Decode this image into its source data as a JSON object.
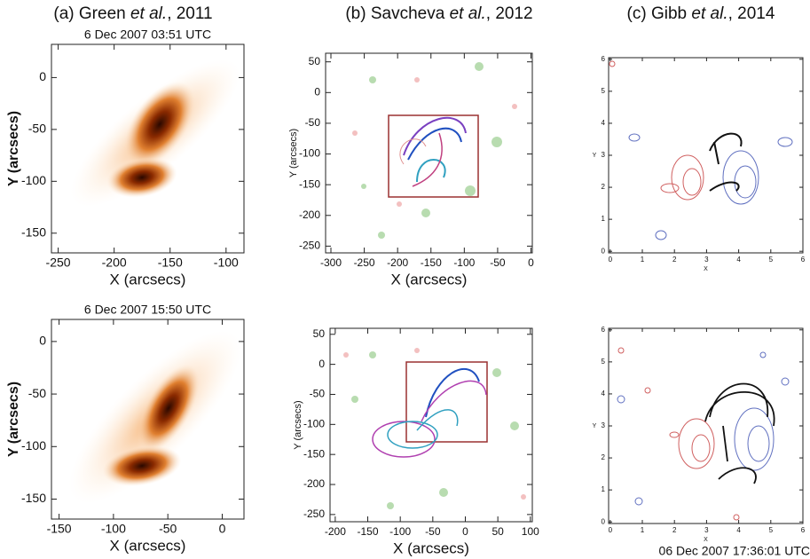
{
  "columns": [
    {
      "prefix": "(a) Green ",
      "italic": "et al.",
      "suffix": ", 2011"
    },
    {
      "prefix": "(b) Savcheva ",
      "italic": "et al.",
      "suffix": ", 2012"
    },
    {
      "prefix": "(c) Gibb ",
      "italic": "et al.",
      "suffix": ", 2014"
    }
  ],
  "panels": [
    {
      "caption": "6 Dec 2007 03:51 UTC",
      "xlabel": "X (arcsecs)",
      "ylabel": "Y (arcsecs)",
      "xlim": [
        -256,
        -84
      ],
      "ylim": [
        -169,
        32
      ],
      "xticks": [
        -250,
        -200,
        -150,
        -100
      ],
      "yticks": [
        -150,
        -100,
        -50,
        0
      ]
    },
    {
      "xlabel": "X (arcsecs)",
      "ylabel": "Y (arcsecs)",
      "xlim": [
        -308,
        2
      ],
      "ylim": [
        -261,
        64
      ],
      "xticks": [
        -300,
        -250,
        -200,
        -150,
        -100,
        -50,
        0
      ],
      "yticks": [
        -250,
        -200,
        -150,
        -100,
        -50,
        0,
        50
      ]
    },
    {
      "xlabel": "X",
      "ylabel": "Y",
      "xlim": [
        -0.05,
        6
      ],
      "ylim": [
        -0.05,
        6.05
      ],
      "xticks": [
        0,
        1,
        2,
        3,
        4,
        5,
        6
      ],
      "yticks": [
        0,
        1,
        2,
        3,
        4,
        5,
        6
      ]
    },
    {
      "caption": "6 Dec 2007 15:50 UTC",
      "xlabel": "X (arcsecs)",
      "ylabel": "Y (arcsecs)",
      "xlim": [
        -157,
        20
      ],
      "ylim": [
        -169,
        21
      ],
      "xticks": [
        -150,
        -100,
        -50,
        0
      ],
      "yticks": [
        -150,
        -100,
        -50,
        0
      ]
    },
    {
      "xlabel": "X (arcsecs)",
      "ylabel": "Y (arcsecs)",
      "xlim": [
        -208,
        103
      ],
      "ylim": [
        -262,
        60
      ],
      "xticks": [
        -200,
        -150,
        -100,
        -50,
        0,
        50,
        100
      ],
      "yticks": [
        -250,
        -200,
        -150,
        -100,
        -50,
        0,
        50
      ]
    },
    {
      "caption": "06 Dec 2007 17:36:01 UTC",
      "xlabel": "X",
      "ylabel": "Y",
      "xlim": [
        -0.05,
        6
      ],
      "ylim": [
        -0.05,
        6.05
      ],
      "xticks": [
        0,
        1,
        2,
        3,
        4,
        5,
        6
      ],
      "yticks": [
        0,
        1,
        2,
        3,
        4,
        5,
        6
      ]
    }
  ]
}
